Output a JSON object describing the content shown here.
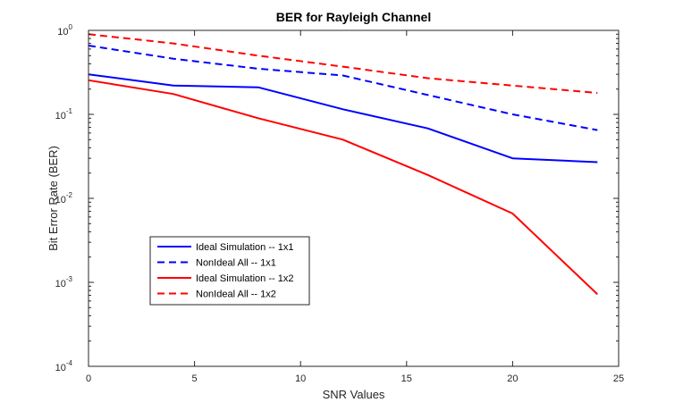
{
  "chart_data": {
    "type": "line",
    "title": "BER for Rayleigh Channel",
    "xlabel": "SNR Values",
    "ylabel": "Bit Error Rate (BER)",
    "xlim": [
      0,
      25
    ],
    "ylim": [
      0.0001,
      1
    ],
    "yscale": "log",
    "grid": false,
    "legend_position": "lower-left",
    "x_ticks": [
      "0",
      "5",
      "10",
      "15",
      "20",
      "25"
    ],
    "y_ticks": [
      {
        "base": "10",
        "exp": "-4"
      },
      {
        "base": "10",
        "exp": "-3"
      },
      {
        "base": "10",
        "exp": "-2"
      },
      {
        "base": "10",
        "exp": "-1"
      },
      {
        "base": "10",
        "exp": "0"
      }
    ],
    "x": [
      0,
      4,
      8,
      12,
      16,
      20,
      24
    ],
    "series": [
      {
        "name": "Ideal Simulation -- 1x1",
        "color": "#0000ff",
        "dash": "solid",
        "values": [
          0.3,
          0.22,
          0.21,
          0.115,
          0.068,
          0.03,
          0.027
        ]
      },
      {
        "name": "NonIdeal All -- 1x1",
        "color": "#0000ff",
        "dash": "dashed",
        "values": [
          0.66,
          0.46,
          0.35,
          0.29,
          0.17,
          0.1,
          0.065
        ]
      },
      {
        "name": "Ideal Simulation -- 1x2",
        "color": "#ff0000",
        "dash": "solid",
        "values": [
          0.255,
          0.175,
          0.09,
          0.05,
          0.019,
          0.0066,
          0.00072
        ]
      },
      {
        "name": "NonIdeal All -- 1x2",
        "color": "#ff0000",
        "dash": "dashed",
        "values": [
          0.9,
          0.7,
          0.5,
          0.37,
          0.27,
          0.22,
          0.18
        ]
      }
    ]
  }
}
